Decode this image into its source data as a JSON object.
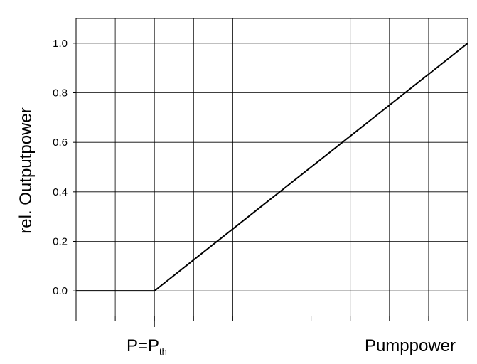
{
  "chart_data": {
    "type": "line",
    "title": "",
    "ylabel": "rel. Outputpower",
    "xlabel_threshold": {
      "base": "P=P",
      "subscript": "th"
    },
    "xlabel_right": "Pumppower",
    "ylim": [
      -0.1,
      1.1
    ],
    "yticks": [
      0.0,
      0.2,
      0.4,
      0.6,
      0.8,
      1.0
    ],
    "ytick_labels": [
      "0.0",
      "0.2",
      "0.4",
      "0.6",
      "0.8",
      "1.0"
    ],
    "xlim": [
      0,
      10
    ],
    "xgrid_step": 1,
    "threshold_x": 2,
    "grid": true,
    "series": [
      {
        "x": [
          0,
          2,
          10
        ],
        "y": [
          0.0,
          0.0,
          1.0
        ]
      }
    ]
  }
}
